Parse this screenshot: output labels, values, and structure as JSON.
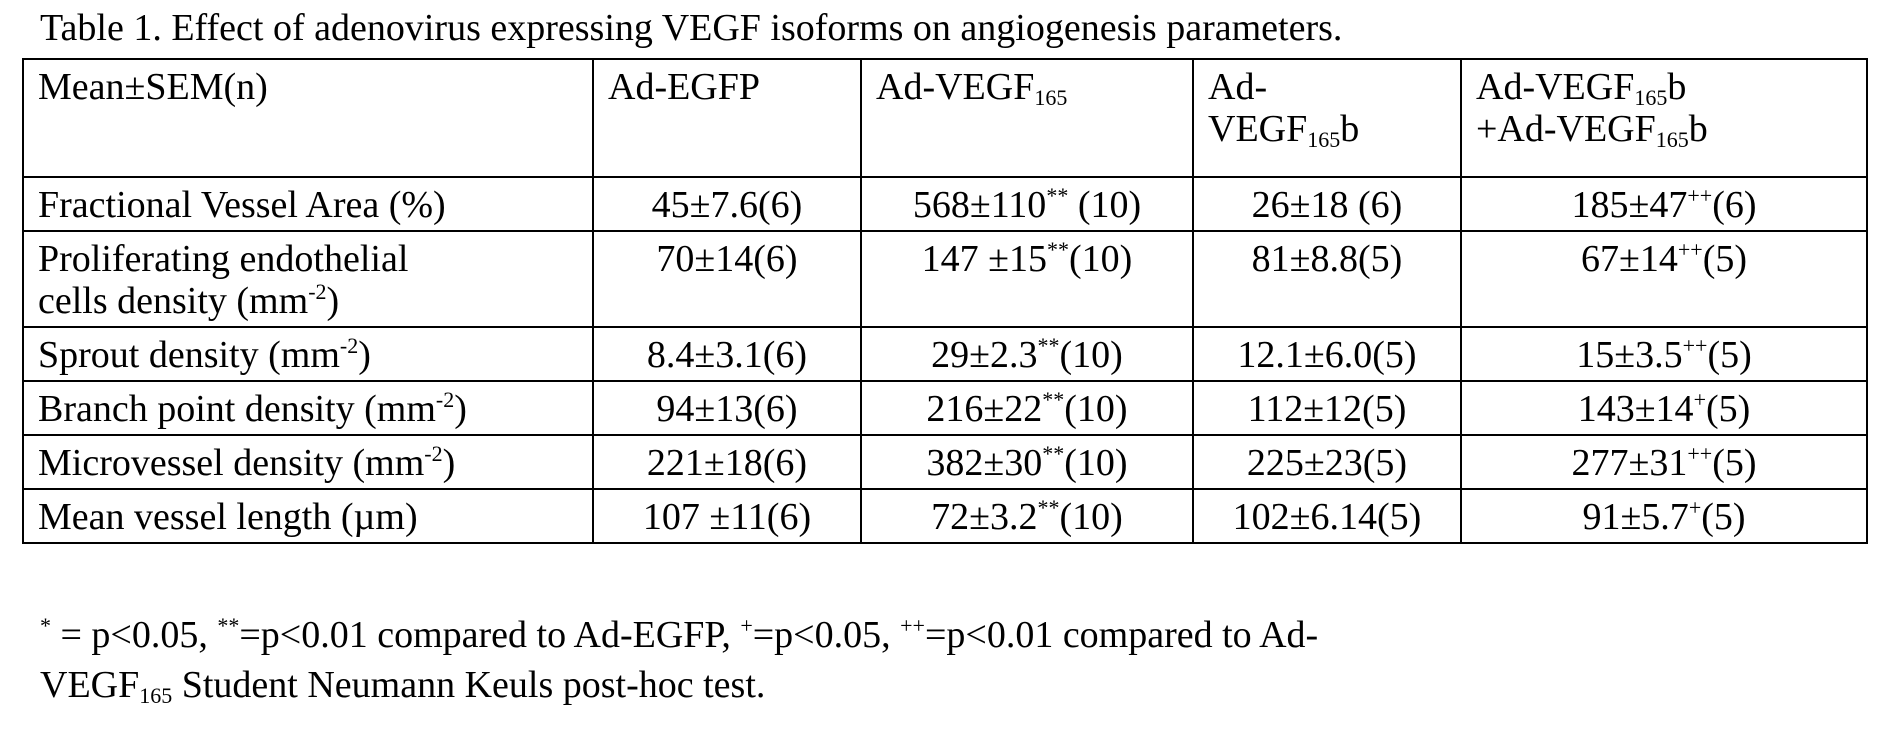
{
  "caption": "Table 1. Effect of adenovirus expressing VEGF isoforms on angiogenesis parameters.",
  "header": {
    "col0": "Mean±SEM(n)",
    "col1": "Ad-EGFP",
    "col2_base": "Ad-VEGF",
    "col2_sub": "165",
    "col3_line1": "Ad-",
    "col3_base": "VEGF",
    "col3_sub": "165",
    "col3_suffix": "b",
    "col4_line1_base": "Ad-VEGF",
    "col4_line1_sub": "165",
    "col4_line1_suffix": "b",
    "col4_line2_base": "+Ad-VEGF",
    "col4_line2_sub": "165",
    "col4_line2_suffix": "b"
  },
  "rows": [
    {
      "label_line1": "Fractional Vessel Area (%)",
      "label_line2": "",
      "label_unit_sup": "",
      "label_end": "",
      "egfp": "45±7.6(6)",
      "v165_a": "568±110",
      "v165_sup": "**",
      "v165_b": " (10)",
      "v165b": "26±18 (6)",
      "combo_a": "185±47",
      "combo_sup": "++",
      "combo_b": "(6)"
    },
    {
      "label_line1": "Proliferating endothelial",
      "label_line2": "cells density (mm",
      "label_unit_sup": "-2",
      "label_end": ")",
      "egfp": "70±14(6)",
      "v165_a": "147 ±15",
      "v165_sup": "**",
      "v165_b": "(10)",
      "v165b": "81±8.8(5)",
      "combo_a": "67±14",
      "combo_sup": "++",
      "combo_b": "(5)"
    },
    {
      "label_line1": "Sprout density (mm",
      "label_line2": "",
      "label_unit_sup": "-2",
      "label_end": ")",
      "egfp": "8.4±3.1(6)",
      "v165_a": "29±2.3",
      "v165_sup": "**",
      "v165_b": "(10)",
      "v165b": "12.1±6.0(5)",
      "combo_a": "15±3.5",
      "combo_sup": "++",
      "combo_b": "(5)"
    },
    {
      "label_line1": "Branch point density (mm",
      "label_line2": "",
      "label_unit_sup": "-2",
      "label_end": ")",
      "egfp": "94±13(6)",
      "v165_a": "216±22",
      "v165_sup": "**",
      "v165_b": "(10)",
      "v165b": "112±12(5)",
      "combo_a": "143±14",
      "combo_sup": "+",
      "combo_b": "(5)"
    },
    {
      "label_line1": "Microvessel density (mm",
      "label_line2": "",
      "label_unit_sup": "-2",
      "label_end": ")",
      "egfp": "221±18(6)",
      "v165_a": "382±30",
      "v165_sup": "**",
      "v165_b": "(10)",
      "v165b": "225±23(5)",
      "combo_a": "277±31",
      "combo_sup": "++",
      "combo_b": "(5)"
    },
    {
      "label_line1": "Mean vessel length (µm)",
      "label_line2": "",
      "label_unit_sup": "",
      "label_end": "",
      "egfp": "107 ±11(6)",
      "v165_a": "72±3.2",
      "v165_sup": "**",
      "v165_b": "(10)",
      "v165b": "102±6.14(5)",
      "combo_a": "91±5.7",
      "combo_sup": "+",
      "combo_b": "(5)"
    }
  ],
  "footnote": {
    "s1": "*",
    "t1": " = p<0.05, ",
    "s2": "**",
    "t2": "=p<0.01 compared to Ad-EGFP, ",
    "s3": "+",
    "t3": "=p<0.05, ",
    "s4": "++",
    "t4": "=p<0.01 compared to Ad-",
    "t5": "VEGF",
    "sub5": "165",
    "t6": " Student Neumann Keuls post-hoc test."
  }
}
